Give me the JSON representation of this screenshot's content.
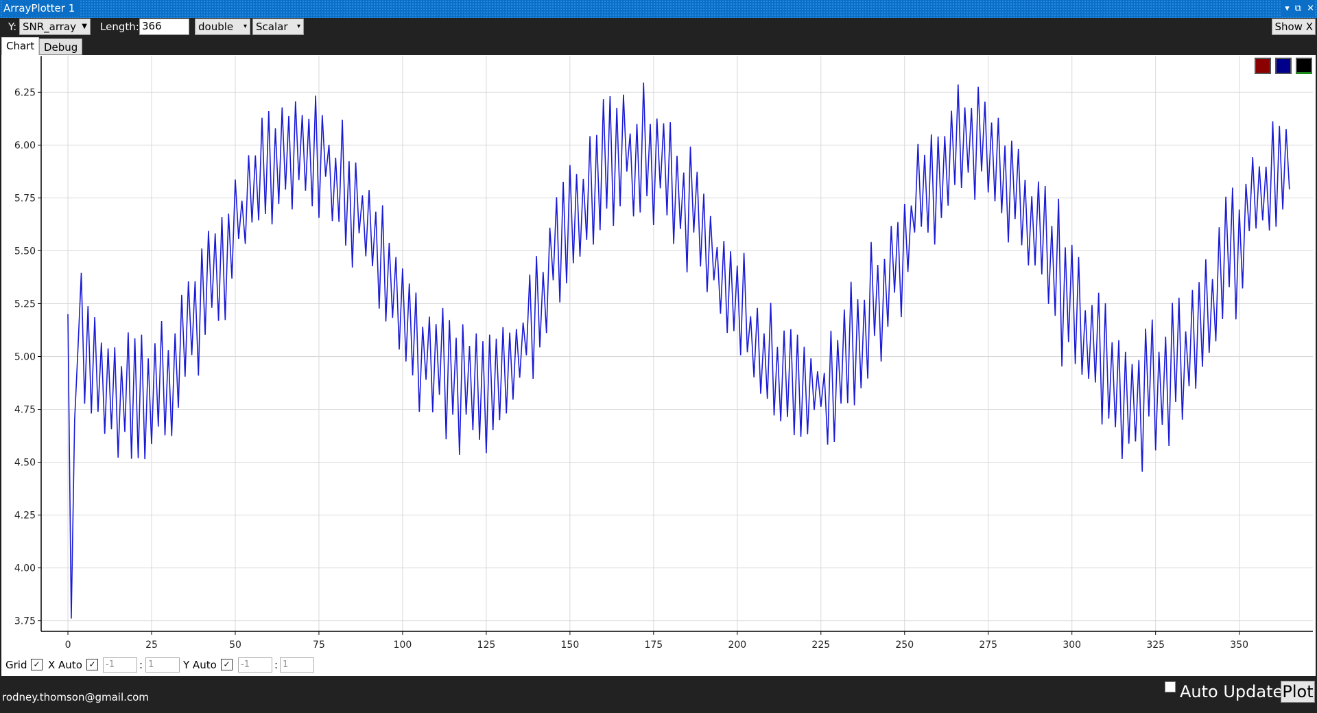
{
  "window": {
    "title": "ArrayPlotter 1",
    "controls": [
      "▾",
      "⧉",
      "✕"
    ]
  },
  "toolbar": {
    "y_label": "Y:",
    "y_variable": "SNR_array",
    "length_label": "Length:",
    "length_value": "366",
    "type_select": "double",
    "mode_select": "Scalar",
    "show_x_label": "Show X"
  },
  "tabs": {
    "chart": "Chart",
    "debug": "Debug"
  },
  "colors": {
    "line": "#1a1ad6",
    "grid": "#d8d8d8",
    "swatch_red": "#8b0000",
    "swatch_blue": "#00008b",
    "swatch_black": "#000000"
  },
  "chart_data": {
    "type": "line",
    "title": "",
    "xlabel": "",
    "ylabel": "",
    "x_range": [
      -8,
      372
    ],
    "y_range": [
      3.7,
      6.42
    ],
    "xticks": [
      0,
      25,
      50,
      75,
      100,
      125,
      150,
      175,
      200,
      225,
      250,
      275,
      300,
      325,
      350
    ],
    "yticks": [
      "3.75",
      "4.00",
      "4.25",
      "4.50",
      "4.75",
      "5.00",
      "5.25",
      "5.50",
      "5.75",
      "6.00",
      "6.25"
    ],
    "grid": true,
    "series": [
      {
        "name": "SNR_array",
        "length": 366,
        "mean": 5.4,
        "amplitude": 0.58,
        "period": 100,
        "start_value": 5.2,
        "dip_value": 3.76,
        "dip_index": 1,
        "end_value": 5.79
      }
    ]
  },
  "bottom_controls": {
    "grid_label": "Grid",
    "x_auto_label": "X Auto",
    "x_min": "-1",
    "x_max": "1",
    "y_auto_label": "Y Auto",
    "y_min": "-1",
    "y_max": "1",
    "separator": ":"
  },
  "status": {
    "email": "rodney.thomson@gmail.com",
    "auto_update_label": "Auto Update",
    "plot_label": "Plot"
  }
}
